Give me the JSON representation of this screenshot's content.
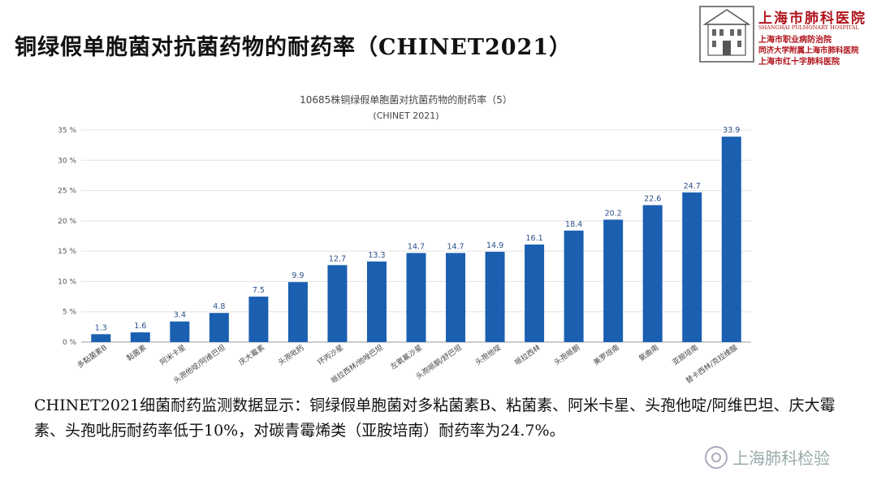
{
  "slide_title": "铜绿假单胞菌对抗菌药物的耐药率（CHINET2021）",
  "logo": {
    "name_cn": "上海市肺科医院",
    "name_en": "SHANGHAI PULMONARY HOSPITAL",
    "line1": "上海市职业病防治院",
    "line2": "同济大学附属上海市肺科医院",
    "line3": "上海市红十字肺科医院"
  },
  "chart_data": {
    "type": "bar",
    "title": "10685株铜绿假单胞菌对抗菌药物的耐药率（5）",
    "subtitle": "(CHINET 2021)",
    "categories": [
      "多黏菌素B",
      "黏菌素",
      "阿米卡星",
      "头孢他啶/阿维巴坦",
      "庆大霉素",
      "头孢吡肟",
      "环丙沙星",
      "哌拉西林/他唑巴坦",
      "左氧氟沙星",
      "头孢哌酮/舒巴坦",
      "头孢他啶",
      "哌拉西林",
      "头孢哌酮",
      "美罗培南",
      "氨曲南",
      "亚胺培南",
      "替卡西林/克拉维酸"
    ],
    "values": [
      1.3,
      1.6,
      3.4,
      4.8,
      7.5,
      9.9,
      12.7,
      13.3,
      14.7,
      14.7,
      14.9,
      16.1,
      18.4,
      20.2,
      22.6,
      24.7,
      33.9
    ],
    "value_labels": [
      "1.3",
      "1.6",
      "3.4",
      "4.8",
      "7.5",
      "9.9",
      "12.7",
      "13.3",
      "14.7",
      "14.7",
      "14.9",
      "16.1",
      "18.4",
      "20.2",
      "22.6",
      "24.7",
      "33.9"
    ],
    "ylim": [
      0,
      35
    ],
    "yticks": [
      0,
      5,
      10,
      15,
      20,
      25,
      30,
      35
    ],
    "ytick_labels": [
      "0 %",
      "5 %",
      "10 %",
      "15 %",
      "20 %",
      "25 %",
      "30 %",
      "35 %"
    ],
    "grid": true,
    "bar_color": "#1b5fb0"
  },
  "description": "CHINET2021细菌耐药监测数据显示：铜绿假单胞菌对多粘菌素B、粘菌素、阿米卡星、头孢他啶/阿维巴坦、庆大霉素、头孢吡肟耐药率低于10%，对碳青霉烯类（亚胺培南）耐药率为24.7%。",
  "watermark": "上海肺科检验"
}
